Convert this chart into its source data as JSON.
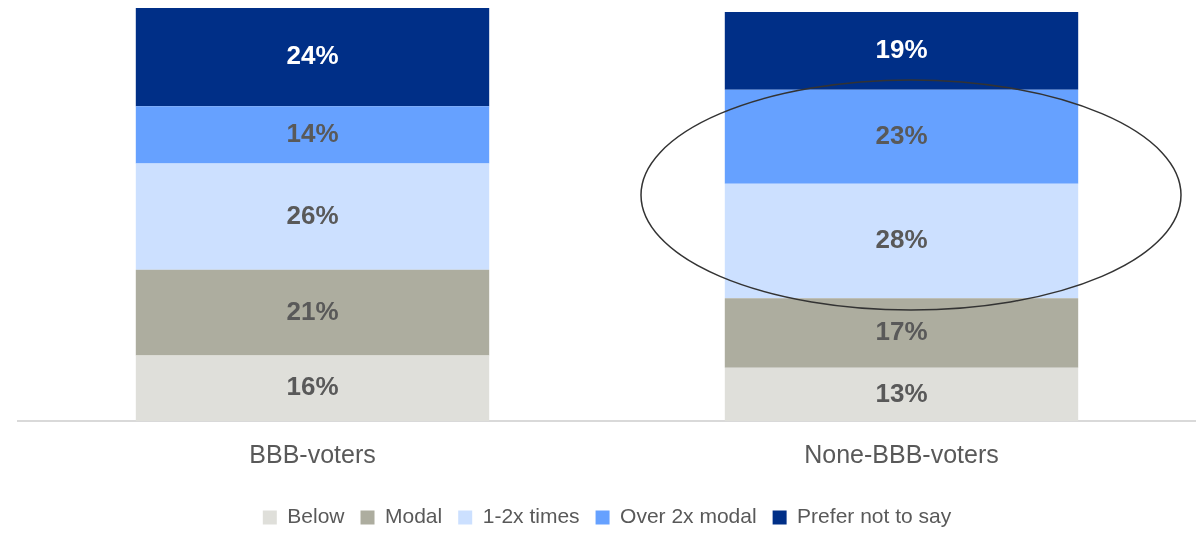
{
  "chart_data": {
    "type": "bar",
    "stacked": true,
    "legend": "bottom",
    "grid": false,
    "categories": [
      "BBB-voters",
      "None-BBB-voters"
    ],
    "series": [
      {
        "name": "Below",
        "color": "#dfdfda",
        "values": [
          16,
          13
        ],
        "value_labels": [
          "16%",
          "13%"
        ]
      },
      {
        "name": "Modal",
        "color": "#adad9f",
        "values": [
          21,
          17
        ],
        "value_labels": [
          "21%",
          "17%"
        ]
      },
      {
        "name": "1-2x times",
        "color": "#cce0ff",
        "values": [
          26,
          28
        ],
        "value_labels": [
          "26%",
          "28%"
        ]
      },
      {
        "name": "Over 2x modal",
        "color": "#66a1ff",
        "values": [
          14,
          23
        ],
        "value_labels": [
          "14%",
          "23%"
        ]
      },
      {
        "name": "Prefer not to say",
        "color": "#002f87",
        "values": [
          24,
          19
        ],
        "value_labels": [
          "24%",
          "19%"
        ]
      }
    ]
  }
}
